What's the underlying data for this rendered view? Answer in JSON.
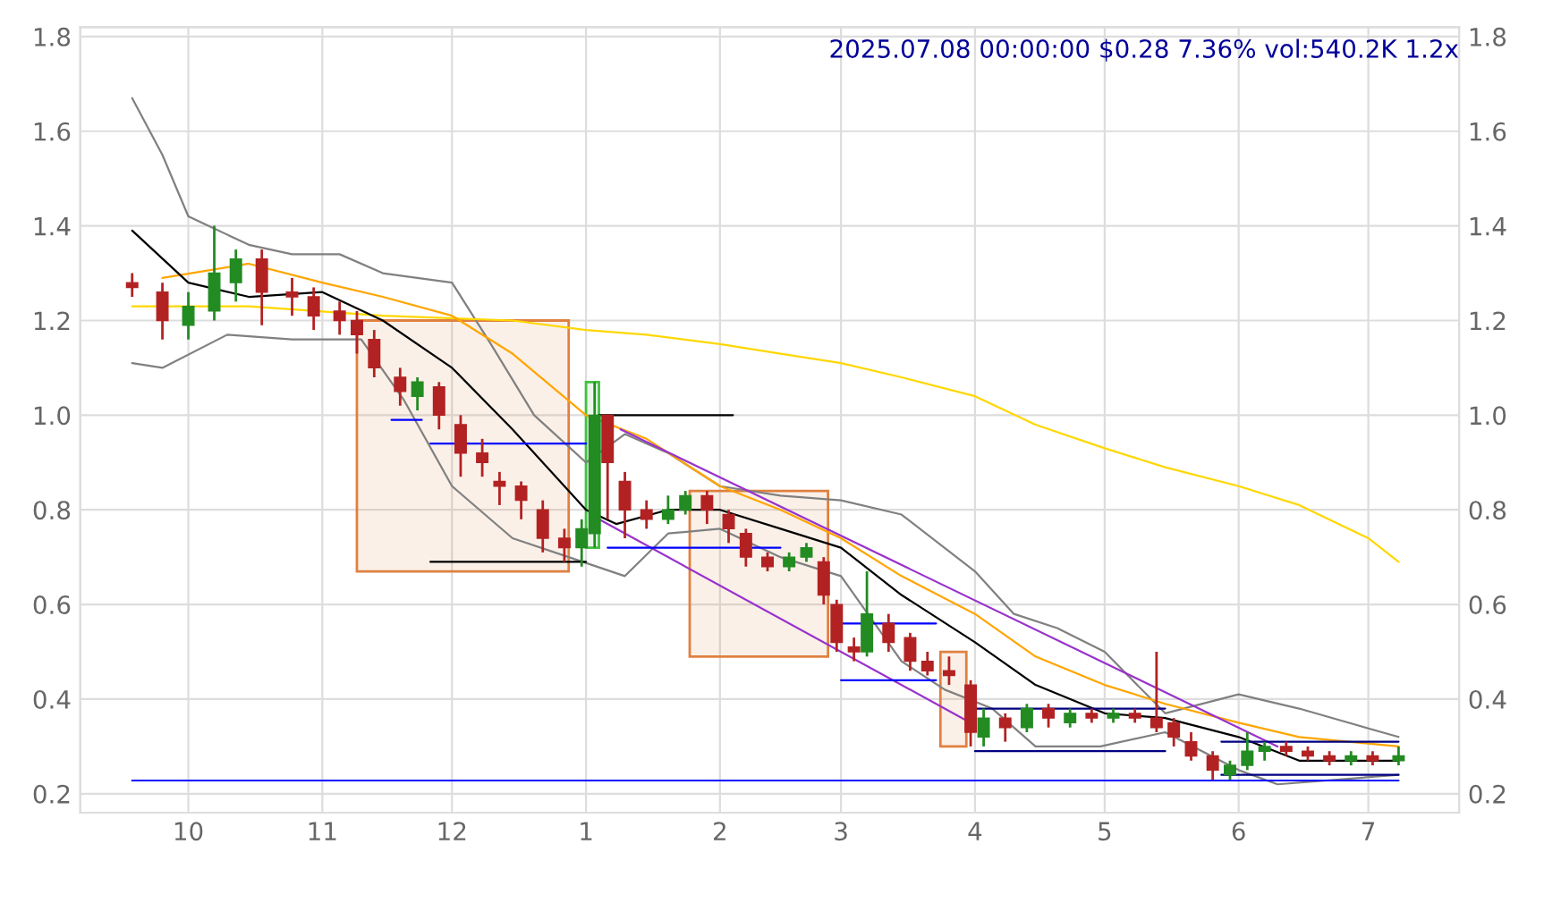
{
  "chart_data": {
    "type": "candlestick",
    "title": "2025.07.08 00:00:00 $0.28 7.36% vol:540.2K 1.2x",
    "x": [
      "2024-09-18",
      "2024-09-25",
      "2024-10-01",
      "2024-10-07",
      "2024-10-12",
      "2024-10-18",
      "2024-10-25",
      "2024-10-30",
      "2024-11-05",
      "2024-11-09",
      "2024-11-13",
      "2024-11-19",
      "2024-11-23",
      "2024-11-28",
      "2024-12-03",
      "2024-12-08",
      "2024-12-12",
      "2024-12-17",
      "2024-12-22",
      "2024-12-27",
      "2024-12-31",
      "2025-01-03",
      "2025-01-06",
      "2025-01-10",
      "2025-01-15",
      "2025-01-20",
      "2025-01-24",
      "2025-01-29",
      "2025-02-03",
      "2025-02-07",
      "2025-02-12",
      "2025-02-17",
      "2025-02-21",
      "2025-02-25",
      "2025-02-28",
      "2025-03-04",
      "2025-03-07",
      "2025-03-12",
      "2025-03-17",
      "2025-03-21",
      "2025-03-26",
      "2025-03-31",
      "2025-04-03",
      "2025-04-08",
      "2025-04-13",
      "2025-04-18",
      "2025-04-23",
      "2025-04-28",
      "2025-05-03",
      "2025-05-08",
      "2025-05-13",
      "2025-05-17",
      "2025-05-21",
      "2025-05-26",
      "2025-05-30",
      "2025-06-03",
      "2025-06-07",
      "2025-06-12",
      "2025-06-17",
      "2025-06-22",
      "2025-06-27",
      "2025-07-02",
      "2025-07-08"
    ],
    "ohlc": [
      [
        1.28,
        1.3,
        1.25,
        1.27
      ],
      [
        1.26,
        1.28,
        1.16,
        1.2
      ],
      [
        1.19,
        1.26,
        1.16,
        1.23
      ],
      [
        1.22,
        1.4,
        1.2,
        1.3
      ],
      [
        1.28,
        1.35,
        1.24,
        1.33
      ],
      [
        1.33,
        1.35,
        1.19,
        1.26
      ],
      [
        1.26,
        1.29,
        1.21,
        1.25
      ],
      [
        1.25,
        1.27,
        1.18,
        1.21
      ],
      [
        1.22,
        1.24,
        1.17,
        1.2
      ],
      [
        1.2,
        1.22,
        1.13,
        1.17
      ],
      [
        1.16,
        1.18,
        1.08,
        1.1
      ],
      [
        1.08,
        1.1,
        1.02,
        1.05
      ],
      [
        1.04,
        1.08,
        1.01,
        1.07
      ],
      [
        1.06,
        1.07,
        0.97,
        1.0
      ],
      [
        0.98,
        1.0,
        0.87,
        0.92
      ],
      [
        0.92,
        0.95,
        0.87,
        0.9
      ],
      [
        0.86,
        0.88,
        0.81,
        0.85
      ],
      [
        0.85,
        0.86,
        0.78,
        0.82
      ],
      [
        0.8,
        0.82,
        0.71,
        0.74
      ],
      [
        0.74,
        0.76,
        0.69,
        0.72
      ],
      [
        0.72,
        0.78,
        0.68,
        0.76
      ],
      [
        0.75,
        1.07,
        0.72,
        1.0
      ],
      [
        1.0,
        1.0,
        0.78,
        0.9
      ],
      [
        0.86,
        0.88,
        0.74,
        0.8
      ],
      [
        0.8,
        0.82,
        0.76,
        0.78
      ],
      [
        0.78,
        0.83,
        0.77,
        0.8
      ],
      [
        0.8,
        0.84,
        0.79,
        0.83
      ],
      [
        0.83,
        0.84,
        0.77,
        0.8
      ],
      [
        0.79,
        0.8,
        0.73,
        0.76
      ],
      [
        0.75,
        0.76,
        0.68,
        0.7
      ],
      [
        0.7,
        0.71,
        0.67,
        0.68
      ],
      [
        0.68,
        0.71,
        0.67,
        0.7
      ],
      [
        0.7,
        0.73,
        0.69,
        0.72
      ],
      [
        0.69,
        0.7,
        0.6,
        0.62
      ],
      [
        0.6,
        0.61,
        0.5,
        0.52
      ],
      [
        0.51,
        0.53,
        0.48,
        0.5
      ],
      [
        0.5,
        0.67,
        0.49,
        0.58
      ],
      [
        0.56,
        0.58,
        0.5,
        0.52
      ],
      [
        0.53,
        0.54,
        0.46,
        0.48
      ],
      [
        0.48,
        0.5,
        0.45,
        0.46
      ],
      [
        0.46,
        0.49,
        0.43,
        0.45
      ],
      [
        0.43,
        0.44,
        0.3,
        0.33
      ],
      [
        0.32,
        0.38,
        0.3,
        0.36
      ],
      [
        0.36,
        0.37,
        0.31,
        0.34
      ],
      [
        0.34,
        0.39,
        0.33,
        0.38
      ],
      [
        0.38,
        0.39,
        0.34,
        0.36
      ],
      [
        0.35,
        0.38,
        0.34,
        0.37
      ],
      [
        0.37,
        0.38,
        0.35,
        0.36
      ],
      [
        0.36,
        0.38,
        0.35,
        0.37
      ],
      [
        0.37,
        0.38,
        0.35,
        0.36
      ],
      [
        0.36,
        0.5,
        0.33,
        0.34
      ],
      [
        0.35,
        0.36,
        0.3,
        0.32
      ],
      [
        0.31,
        0.33,
        0.27,
        0.28
      ],
      [
        0.28,
        0.29,
        0.23,
        0.25
      ],
      [
        0.24,
        0.27,
        0.23,
        0.26
      ],
      [
        0.26,
        0.33,
        0.25,
        0.29
      ],
      [
        0.29,
        0.31,
        0.27,
        0.3
      ],
      [
        0.3,
        0.31,
        0.28,
        0.29
      ],
      [
        0.29,
        0.3,
        0.27,
        0.28
      ],
      [
        0.28,
        0.29,
        0.26,
        0.27
      ],
      [
        0.27,
        0.29,
        0.26,
        0.28
      ],
      [
        0.28,
        0.29,
        0.26,
        0.27
      ],
      [
        0.27,
        0.3,
        0.26,
        0.28
      ]
    ],
    "colors": [
      "#b22222",
      "#b22222",
      "#228b22",
      "#228b22",
      "#228b22",
      "#b22222",
      "#b22222",
      "#b22222",
      "#b22222",
      "#b22222",
      "#b22222",
      "#b22222",
      "#228b22",
      "#b22222",
      "#b22222",
      "#b22222",
      "#b22222",
      "#b22222",
      "#b22222",
      "#b22222",
      "#228b22",
      "#228b22",
      "#b22222",
      "#b22222",
      "#b22222",
      "#228b22",
      "#228b22",
      "#b22222",
      "#b22222",
      "#b22222",
      "#b22222",
      "#228b22",
      "#228b22",
      "#b22222",
      "#b22222",
      "#b22222",
      "#228b22",
      "#b22222",
      "#b22222",
      "#b22222",
      "#b22222",
      "#b22222",
      "#228b22",
      "#b22222",
      "#228b22",
      "#b22222",
      "#228b22",
      "#b22222",
      "#228b22",
      "#b22222",
      "#b22222",
      "#b22222",
      "#b22222",
      "#b22222",
      "#228b22",
      "#228b22",
      "#228b22",
      "#b22222",
      "#b22222",
      "#b22222",
      "#228b22",
      "#b22222",
      "#228b22"
    ],
    "series": [
      {
        "type": "area",
        "color": "#e08040",
        "x": [
          "2024-11-09",
          "2024-12-28",
          "2024-12-28",
          "2024-11-09",
          "2024-11-09"
        ],
        "values": [
          0.67,
          0.67,
          1.2,
          1.2,
          0.67
        ]
      },
      {
        "type": "area",
        "color": "#40c040",
        "x": [
          "2025-01-01",
          "2025-01-04",
          "2025-01-04",
          "2025-01-01",
          "2025-01-01"
        ],
        "values": [
          0.72,
          0.72,
          1.07,
          1.07,
          0.72
        ]
      },
      {
        "type": "area",
        "color": "#e08040",
        "x": [
          "2025-01-25",
          "2025-02-26",
          "2025-02-26",
          "2025-01-25",
          "2025-01-25"
        ],
        "values": [
          0.49,
          0.49,
          0.84,
          0.84,
          0.49
        ]
      },
      {
        "type": "area",
        "color": "#e08040",
        "x": [
          "2025-03-24",
          "2025-03-30",
          "2025-03-30",
          "2025-03-24",
          "2025-03-24"
        ],
        "values": [
          0.3,
          0.3,
          0.5,
          0.5,
          0.3
        ]
      },
      {
        "type": "line",
        "color": "#808080",
        "x": [
          "2024-09-18",
          "2024-09-25",
          "2024-10-01",
          "2024-10-15",
          "2024-10-25",
          "2024-11-05",
          "2024-11-15",
          "2024-12-01",
          "2024-12-10",
          "2024-12-20",
          "2025-01-01",
          "2025-01-10",
          "2025-01-20",
          "2025-02-01",
          "2025-02-15",
          "2025-03-01",
          "2025-03-15",
          "2025-04-01",
          "2025-04-10",
          "2025-04-20",
          "2025-05-01",
          "2025-05-15",
          "2025-06-01",
          "2025-06-15",
          "2025-07-08"
        ],
        "values": [
          1.67,
          1.55,
          1.42,
          1.36,
          1.34,
          1.34,
          1.3,
          1.28,
          1.15,
          1.0,
          0.9,
          0.96,
          0.92,
          0.85,
          0.83,
          0.82,
          0.79,
          0.67,
          0.58,
          0.55,
          0.5,
          0.37,
          0.41,
          0.38,
          0.32
        ]
      },
      {
        "type": "line",
        "color": "#808080",
        "x": [
          "2024-09-18",
          "2024-09-25",
          "2024-10-10",
          "2024-10-25",
          "2024-11-10",
          "2024-11-20",
          "2024-12-01",
          "2024-12-15",
          "2024-12-28",
          "2025-01-10",
          "2025-01-20",
          "2025-02-01",
          "2025-02-15",
          "2025-03-01",
          "2025-03-15",
          "2025-03-25",
          "2025-04-05",
          "2025-04-15",
          "2025-04-30",
          "2025-05-15",
          "2025-06-01",
          "2025-06-10",
          "2025-07-08"
        ],
        "values": [
          1.11,
          1.1,
          1.17,
          1.16,
          1.16,
          1.03,
          0.85,
          0.74,
          0.7,
          0.66,
          0.75,
          0.76,
          0.7,
          0.66,
          0.48,
          0.42,
          0.38,
          0.3,
          0.3,
          0.33,
          0.25,
          0.22,
          0.24
        ]
      },
      {
        "type": "line",
        "color": "#ffd700",
        "x": [
          "2024-09-18",
          "2024-10-15",
          "2024-11-15",
          "2024-12-15",
          "2025-01-01",
          "2025-01-15",
          "2025-02-01",
          "2025-02-15",
          "2025-03-01",
          "2025-03-15",
          "2025-04-01",
          "2025-04-15",
          "2025-05-01",
          "2025-05-15",
          "2025-06-01",
          "2025-06-15",
          "2025-07-01",
          "2025-07-08"
        ],
        "values": [
          1.23,
          1.23,
          1.21,
          1.2,
          1.18,
          1.17,
          1.15,
          1.13,
          1.11,
          1.08,
          1.04,
          0.98,
          0.93,
          0.89,
          0.85,
          0.81,
          0.74,
          0.69
        ]
      },
      {
        "type": "line",
        "color": "#ffa500",
        "x": [
          "2024-09-25",
          "2024-10-15",
          "2024-11-01",
          "2024-11-15",
          "2024-12-01",
          "2024-12-15",
          "2025-01-01",
          "2025-01-15",
          "2025-02-01",
          "2025-02-15",
          "2025-03-01",
          "2025-03-15",
          "2025-04-01",
          "2025-04-15",
          "2025-05-01",
          "2025-05-15",
          "2025-06-01",
          "2025-06-15",
          "2025-07-08"
        ],
        "values": [
          1.29,
          1.32,
          1.28,
          1.25,
          1.21,
          1.13,
          1.0,
          0.95,
          0.85,
          0.8,
          0.74,
          0.66,
          0.58,
          0.49,
          0.43,
          0.39,
          0.35,
          0.32,
          0.3
        ]
      },
      {
        "type": "line",
        "color": "#000000",
        "x": [
          "2024-09-18",
          "2024-10-01",
          "2024-10-15",
          "2024-11-01",
          "2024-11-15",
          "2024-12-01",
          "2024-12-15",
          "2025-01-01",
          "2025-01-08",
          "2025-01-20",
          "2025-02-01",
          "2025-02-15",
          "2025-03-01",
          "2025-03-15",
          "2025-04-01",
          "2025-04-15",
          "2025-05-01",
          "2025-05-15",
          "2025-06-01",
          "2025-06-15",
          "2025-07-08"
        ],
        "values": [
          1.39,
          1.28,
          1.25,
          1.26,
          1.2,
          1.1,
          0.97,
          0.8,
          0.77,
          0.8,
          0.8,
          0.76,
          0.72,
          0.62,
          0.52,
          0.43,
          0.37,
          0.36,
          0.32,
          0.27,
          0.27
        ]
      },
      {
        "type": "line",
        "color": "#9932cc",
        "x": [
          "2025-01-09",
          "2025-06-10"
        ],
        "values": [
          0.97,
          0.3
        ]
      },
      {
        "type": "line",
        "color": "#9932cc",
        "x": [
          "2025-01-04",
          "2025-03-31"
        ],
        "values": [
          0.78,
          0.35
        ]
      },
      {
        "type": "line",
        "color": "#0000ff",
        "x": [
          "2024-11-17",
          "2024-11-24"
        ],
        "values": [
          0.99,
          0.99
        ]
      },
      {
        "type": "line",
        "color": "#0000ff",
        "x": [
          "2024-11-26",
          "2025-01-01"
        ],
        "values": [
          0.94,
          0.94
        ]
      },
      {
        "type": "line",
        "color": "#000000",
        "x": [
          "2024-11-26",
          "2025-01-01"
        ],
        "values": [
          0.69,
          0.69
        ]
      },
      {
        "type": "line",
        "color": "#000000",
        "x": [
          "2025-01-04",
          "2025-02-04"
        ],
        "values": [
          1.0,
          1.0
        ]
      },
      {
        "type": "line",
        "color": "#0000ff",
        "x": [
          "2025-01-06",
          "2025-02-15"
        ],
        "values": [
          0.72,
          0.72
        ]
      },
      {
        "type": "line",
        "color": "#0000ff",
        "x": [
          "2025-03-01",
          "2025-03-23"
        ],
        "values": [
          0.56,
          0.56
        ]
      },
      {
        "type": "line",
        "color": "#0000ff",
        "x": [
          "2025-03-01",
          "2025-03-23"
        ],
        "values": [
          0.44,
          0.44
        ]
      },
      {
        "type": "line",
        "color": "#000080",
        "x": [
          "2025-04-01",
          "2025-05-15"
        ],
        "values": [
          0.38,
          0.38
        ]
      },
      {
        "type": "line",
        "color": "#000080",
        "x": [
          "2025-04-01",
          "2025-05-15"
        ],
        "values": [
          0.29,
          0.29
        ]
      },
      {
        "type": "line",
        "color": "#000080",
        "x": [
          "2025-05-28",
          "2025-07-08"
        ],
        "values": [
          0.31,
          0.31
        ]
      },
      {
        "type": "line",
        "color": "#000080",
        "x": [
          "2025-05-28",
          "2025-07-08"
        ],
        "values": [
          0.24,
          0.24
        ]
      },
      {
        "type": "line",
        "color": "#0000ff",
        "x": [
          "2024-09-18",
          "2025-07-08"
        ],
        "values": [
          0.228,
          0.228
        ]
      }
    ],
    "xlim": [
      "2024-09-06",
      "2025-07-22"
    ],
    "xticks": [
      {
        "value": "2024-10-01",
        "label": "10"
      },
      {
        "value": "2024-11-01",
        "label": "11"
      },
      {
        "value": "2024-12-01",
        "label": "12"
      },
      {
        "value": "2025-01-01",
        "label": "1"
      },
      {
        "value": "2025-02-01",
        "label": "2"
      },
      {
        "value": "2025-03-01",
        "label": "3"
      },
      {
        "value": "2025-04-01",
        "label": "4"
      },
      {
        "value": "2025-05-01",
        "label": "5"
      },
      {
        "value": "2025-06-01",
        "label": "6"
      },
      {
        "value": "2025-07-01",
        "label": "7"
      }
    ],
    "ylim": [
      0.16,
      1.82
    ],
    "yticks": [
      0.2,
      0.4,
      0.6,
      0.8,
      {
        "value": 1,
        "label": "1.0"
      },
      1.2,
      1.4,
      1.6,
      1.8
    ],
    "y2lim": [
      0.16,
      1.82
    ],
    "y2ticks": [
      0.2,
      0.4,
      0.6,
      0.8,
      {
        "value": 1,
        "label": "1.0"
      },
      1.2,
      1.4,
      1.6,
      1.8
    ],
    "grid": true
  }
}
